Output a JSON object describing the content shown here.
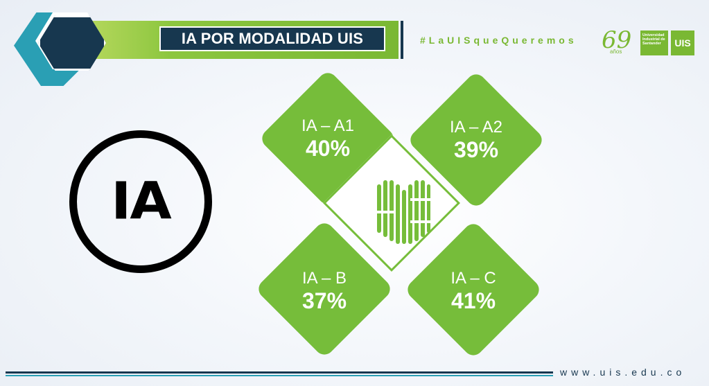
{
  "header": {
    "title": "IA POR MODALIDAD UIS",
    "hashtag": "#LaUISqueQueremos"
  },
  "logos": {
    "anniversary_number": "69",
    "anniversary_word": "años",
    "university_name": "Universidad Industrial de Santander",
    "uis_mark": "UIS"
  },
  "ia_logo": {
    "text": "IA"
  },
  "tiles": [
    {
      "label": "IA – A1",
      "value": "40%"
    },
    {
      "label": "IA – A2",
      "value": "39%"
    },
    {
      "label": "IA – B",
      "value": "37%"
    },
    {
      "label": "IA – C",
      "value": "41%"
    }
  ],
  "footer": {
    "url": "www.uis.edu.co"
  },
  "colors": {
    "green": "#76bd3a",
    "navy": "#17374f",
    "teal": "#2a9fb4"
  }
}
